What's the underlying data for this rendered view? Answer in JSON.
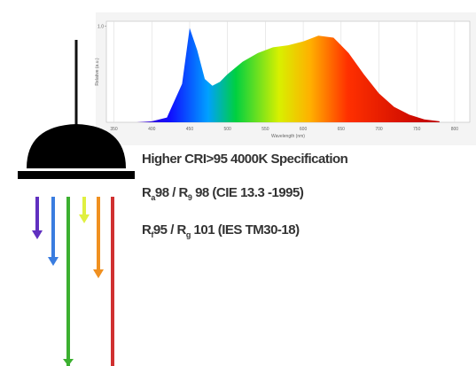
{
  "spectrum": {
    "type": "area",
    "x_label": "Wavelength (nm)",
    "y_label": "Relative (a.u.)",
    "x": [
      380,
      400,
      420,
      440,
      450,
      460,
      470,
      480,
      490,
      500,
      520,
      540,
      560,
      580,
      600,
      620,
      640,
      660,
      680,
      700,
      720,
      740,
      760,
      780
    ],
    "values": [
      0,
      0.01,
      0.05,
      0.4,
      0.98,
      0.75,
      0.45,
      0.38,
      0.42,
      0.5,
      0.63,
      0.72,
      0.78,
      0.8,
      0.84,
      0.9,
      0.88,
      0.72,
      0.5,
      0.3,
      0.16,
      0.08,
      0.03,
      0.01
    ],
    "xlim": [
      340,
      820
    ],
    "xticks": [
      350,
      400,
      450,
      500,
      550,
      600,
      650,
      700,
      750,
      800
    ],
    "ylim": [
      0,
      1.05
    ],
    "yticks": [
      {
        "value": 1,
        "label": "1.0"
      }
    ],
    "grid": true
  },
  "spec_lines": [
    [
      "Higher CRI>95 4000K Specification"
    ],
    [
      "R",
      "a",
      "98 / R",
      "9",
      " 98 (CIE 13.3 -1995)"
    ],
    [
      "R",
      "f",
      "95 / R",
      "g",
      " 101 (IES TM30-18)"
    ]
  ]
}
